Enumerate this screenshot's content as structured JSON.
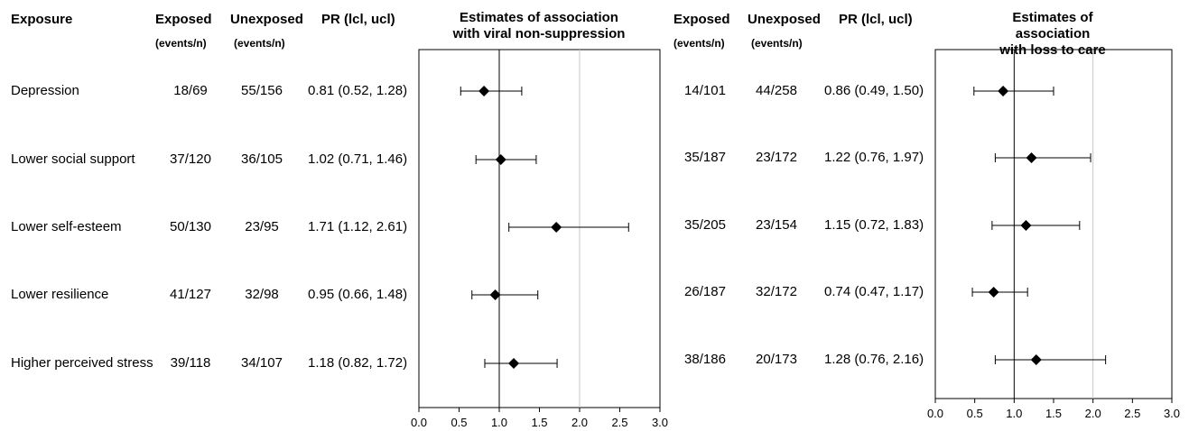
{
  "headers": {
    "exposure": "Exposure",
    "exposed": "Exposed",
    "unexposed": "Unexposed",
    "pr": "PR (lcl, ucl)",
    "events_n": "(events/n)"
  },
  "chart_data": [
    {
      "type": "forest",
      "title": "Estimates of association\nwith viral non-suppression",
      "xlim": [
        0,
        3
      ],
      "xticks": [
        "0.0",
        "0.5",
        "1.0",
        "1.5",
        "2.0",
        "2.5",
        "3.0"
      ],
      "reference_lines": [
        1.0,
        2.0
      ],
      "rows": [
        {
          "exposure": "Depression",
          "exposed": "18/69",
          "unexposed": "55/156",
          "pr_text": "0.81 (0.52, 1.28)",
          "pr": 0.81,
          "lcl": 0.52,
          "ucl": 1.28
        },
        {
          "exposure": "Lower social support",
          "exposed": "37/120",
          "unexposed": "36/105",
          "pr_text": "1.02 (0.71, 1.46)",
          "pr": 1.02,
          "lcl": 0.71,
          "ucl": 1.46
        },
        {
          "exposure": "Lower self-esteem",
          "exposed": "50/130",
          "unexposed": "23/95",
          "pr_text": "1.71 (1.12, 2.61)",
          "pr": 1.71,
          "lcl": 1.12,
          "ucl": 2.61
        },
        {
          "exposure": "Lower resilience",
          "exposed": "41/127",
          "unexposed": "32/98",
          "pr_text": "0.95 (0.66, 1.48)",
          "pr": 0.95,
          "lcl": 0.66,
          "ucl": 1.48
        },
        {
          "exposure": "Higher perceived stress",
          "exposed": "39/118",
          "unexposed": "34/107",
          "pr_text": "1.18 (0.82, 1.72)",
          "pr": 1.18,
          "lcl": 0.82,
          "ucl": 1.72
        }
      ]
    },
    {
      "type": "forest",
      "title": "Estimates of association\nwith loss to care",
      "xlim": [
        0,
        3
      ],
      "xticks": [
        "0.0",
        "0.5",
        "1.0",
        "1.5",
        "2.0",
        "2.5",
        "3.0"
      ],
      "reference_lines": [
        1.0,
        2.0
      ],
      "rows": [
        {
          "exposed": "14/101",
          "unexposed": "44/258",
          "pr_text": "0.86 (0.49, 1.50)",
          "pr": 0.86,
          "lcl": 0.49,
          "ucl": 1.5
        },
        {
          "exposed": "35/187",
          "unexposed": "23/172",
          "pr_text": "1.22 (0.76, 1.97)",
          "pr": 1.22,
          "lcl": 0.76,
          "ucl": 1.97
        },
        {
          "exposed": "35/205",
          "unexposed": "23/154",
          "pr_text": "1.15 (0.72, 1.83)",
          "pr": 1.15,
          "lcl": 0.72,
          "ucl": 1.83
        },
        {
          "exposed": "26/187",
          "unexposed": "32/172",
          "pr_text": "0.74 (0.47, 1.17)",
          "pr": 0.74,
          "lcl": 0.47,
          "ucl": 1.17
        },
        {
          "exposed": "38/186",
          "unexposed": "20/173",
          "pr_text": "1.28 (0.76, 2.16)",
          "pr": 1.28,
          "lcl": 0.76,
          "ucl": 2.16
        }
      ]
    }
  ]
}
